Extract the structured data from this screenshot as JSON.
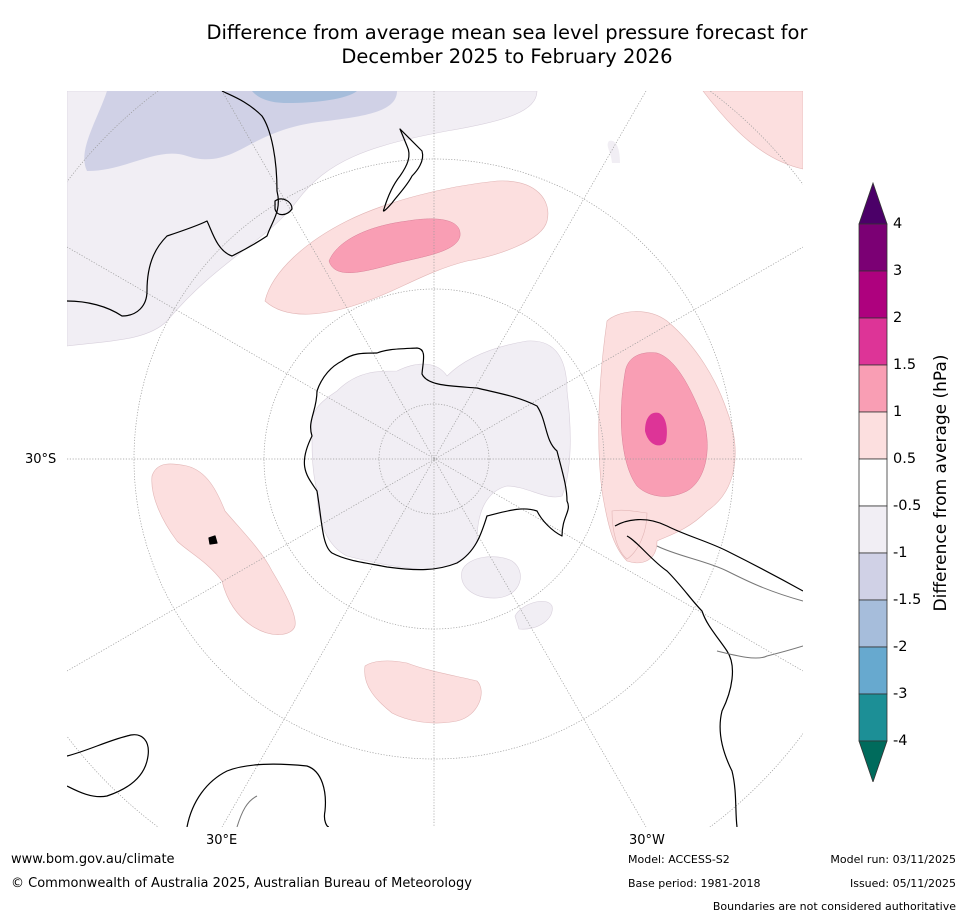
{
  "title": {
    "line1": "Difference from average mean sea level pressure forecast for",
    "line2": "December 2025 to February 2026"
  },
  "map": {
    "projection": "south-polar-stereographic",
    "lat_label": "30°S",
    "lon_labels": {
      "east": "30°E",
      "west": "30°W"
    },
    "landmass_names": [
      "Antarctica",
      "Australia",
      "New Zealand",
      "South America",
      "Africa",
      "Madagascar"
    ],
    "anomaly_regions": [
      {
        "name": "tasman-sea-high",
        "level": "0.5 to 1",
        "core_level": "1 to 1.5"
      },
      {
        "name": "southeast-pacific-high",
        "level": "0.5 to 1",
        "inner_level": "1 to 1.5",
        "core_level": "1.5 to 2"
      },
      {
        "name": "southern-indian-ocean-high",
        "level": "0.5 to 1"
      },
      {
        "name": "south-of-africa-high",
        "level": "0.5 to 1"
      },
      {
        "name": "south-atlantic-high-small",
        "level": "0.5 to 1"
      },
      {
        "name": "antarctic-low",
        "level": "-0.5 to -1"
      },
      {
        "name": "australia-low",
        "level": "-0.5 to -1",
        "inner_level": "-1 to -1.5",
        "core_level": "-1.5 to -2"
      }
    ]
  },
  "colorbar": {
    "title": "Difference from average (hPa)",
    "ticks": [
      "4",
      "3",
      "2",
      "1.5",
      "1",
      "0.5",
      "-0.5",
      "-1",
      "-1.5",
      "-2",
      "-3",
      "-4"
    ],
    "extend_colors": {
      "max": "#4b0068",
      "min": "#006b5c"
    },
    "bins": [
      {
        "range": "3 to 4",
        "color": "#7b0074"
      },
      {
        "range": "2 to 3",
        "color": "#ae017e"
      },
      {
        "range": "1.5 to 2",
        "color": "#dd3497"
      },
      {
        "range": "1 to 1.5",
        "color": "#f99eb4"
      },
      {
        "range": "0.5 to 1",
        "color": "#fcdfdf"
      },
      {
        "range": "-0.5 to 0.5",
        "color": "#ffffff"
      },
      {
        "range": "-1 to -0.5",
        "color": "#f1eef4"
      },
      {
        "range": "-1.5 to -1",
        "color": "#d0d1e6"
      },
      {
        "range": "-2 to -1.5",
        "color": "#a6bddb"
      },
      {
        "range": "-3 to -2",
        "color": "#67a9cf"
      },
      {
        "range": "-4 to -3",
        "color": "#1c8f96"
      }
    ]
  },
  "footer": {
    "url": "www.bom.gov.au/climate",
    "copyright": "© Commonwealth of Australia 2025, Australian Bureau of Meteorology",
    "model": "Model: ACCESS-S2",
    "base_period": "Base period: 1981-2018",
    "model_run": "Model run: 03/11/2025",
    "issued": "Issued: 05/11/2025",
    "disclaimer": "Boundaries are not considered authoritative"
  }
}
